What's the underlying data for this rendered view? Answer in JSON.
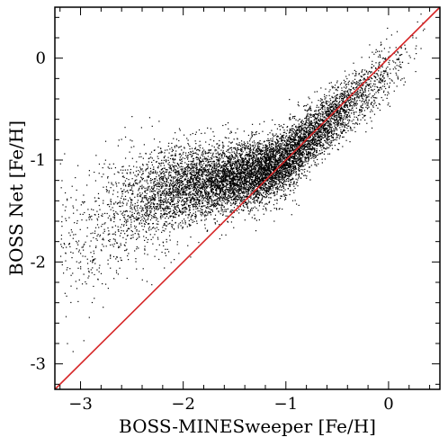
{
  "chart_data": {
    "type": "scatter",
    "title": "",
    "xlabel": "BOSS-MINESweeper [Fe/H]",
    "ylabel": "BOSS Net [Fe/H]",
    "xlim": [
      -3.25,
      0.5
    ],
    "ylim": [
      -3.25,
      0.5
    ],
    "x_ticks": [
      -3,
      -2,
      -1,
      0
    ],
    "y_ticks": [
      -3,
      -2,
      -1,
      0
    ],
    "x_tick_labels": [
      "−3",
      "−2",
      "−1",
      "0"
    ],
    "y_tick_labels": [
      "-3",
      "-2",
      "-1",
      "0"
    ],
    "grid": false,
    "legend": "none",
    "reference_line": {
      "type": "one-to-one",
      "x": [
        -3.25,
        0.5
      ],
      "y": [
        -3.25,
        0.5
      ],
      "color": "#d62728"
    },
    "point_color": "#000000",
    "point_count": 9000,
    "series": [
      {
        "values_summary": "dense cloud of stars; relation flattens below [Fe/H]≈-1.2 (BOSS Net ≈ -1.2 to -1.3) and follows the 1:1 line above -1",
        "density_anchors": [
          {
            "x": -3.0,
            "y_center": -1.8,
            "y_spread": 0.35,
            "weight": 0.4
          },
          {
            "x": -2.5,
            "y_center": -1.45,
            "y_spread": 0.28,
            "weight": 1.2
          },
          {
            "x": -2.0,
            "y_center": -1.25,
            "y_spread": 0.2,
            "weight": 3.0
          },
          {
            "x": -1.5,
            "y_center": -1.18,
            "y_spread": 0.16,
            "weight": 4.5
          },
          {
            "x": -1.2,
            "y_center": -1.1,
            "y_spread": 0.15,
            "weight": 5.5
          },
          {
            "x": -1.0,
            "y_center": -1.0,
            "y_spread": 0.15,
            "weight": 4.5
          },
          {
            "x": -0.7,
            "y_center": -0.72,
            "y_spread": 0.14,
            "weight": 3.5
          },
          {
            "x": -0.5,
            "y_center": -0.55,
            "y_spread": 0.14,
            "weight": 2.5
          },
          {
            "x": -0.2,
            "y_center": -0.3,
            "y_spread": 0.15,
            "weight": 1.2
          },
          {
            "x": 0.1,
            "y_center": -0.05,
            "y_spread": 0.16,
            "weight": 0.35
          },
          {
            "x": 0.3,
            "y_center": 0.15,
            "y_spread": 0.15,
            "weight": 0.1
          }
        ]
      }
    ]
  }
}
